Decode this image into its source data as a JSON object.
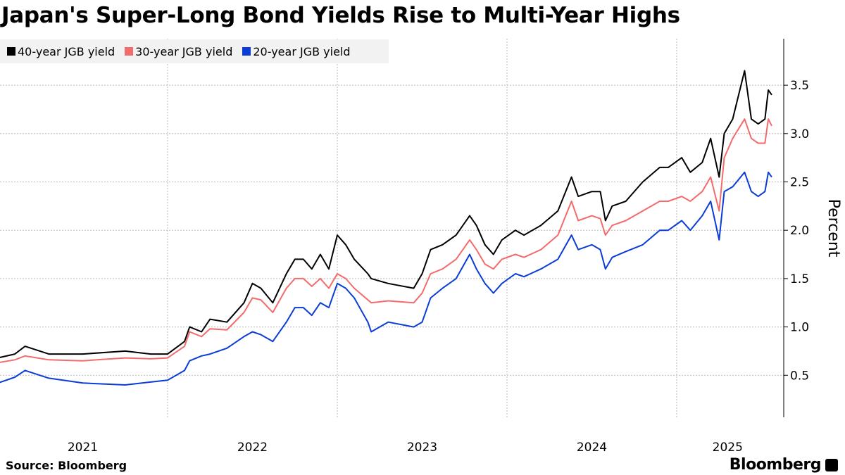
{
  "chart_data": {
    "type": "line",
    "title": "Japan's Super-Long Bond Yields Rise to Multi-Year Highs",
    "xlabel": "",
    "ylabel": "Percent",
    "ylim": [
      0.07,
      4.0
    ],
    "xlim": [
      2021.0,
      2025.62
    ],
    "x_ticks": [
      {
        "value": 2021.5,
        "label": "2021"
      },
      {
        "value": 2022.5,
        "label": "2022"
      },
      {
        "value": 2023.5,
        "label": "2023"
      },
      {
        "value": 2024.5,
        "label": "2024"
      },
      {
        "value": 2025.3,
        "label": "2025"
      }
    ],
    "x_gridlines": [
      2022.0,
      2023.0,
      2024.0,
      2025.0
    ],
    "y_ticks": [
      {
        "value": 0.5,
        "label": "0.5"
      },
      {
        "value": 1.0,
        "label": "1.0"
      },
      {
        "value": 1.5,
        "label": "1.5"
      },
      {
        "value": 2.0,
        "label": "2.0"
      },
      {
        "value": 2.5,
        "label": "2.5"
      },
      {
        "value": 3.0,
        "label": "3.0"
      },
      {
        "value": 3.5,
        "label": "3.5"
      }
    ],
    "grid": true,
    "legend_placement": "top-left",
    "x": [
      2021.0,
      2021.1,
      2021.16,
      2021.3,
      2021.5,
      2021.75,
      2021.9,
      2022.0,
      2022.1,
      2022.13,
      2022.2,
      2022.25,
      2022.35,
      2022.45,
      2022.5,
      2022.55,
      2022.62,
      2022.7,
      2022.75,
      2022.8,
      2022.85,
      2022.9,
      2022.95,
      2023.0,
      2023.05,
      2023.1,
      2023.18,
      2023.2,
      2023.3,
      2023.45,
      2023.5,
      2023.55,
      2023.62,
      2023.7,
      2023.78,
      2023.82,
      2023.87,
      2023.92,
      2023.97,
      2024.05,
      2024.1,
      2024.2,
      2024.3,
      2024.38,
      2024.42,
      2024.5,
      2024.55,
      2024.58,
      2024.62,
      2024.7,
      2024.8,
      2024.9,
      2024.95,
      2025.03,
      2025.08,
      2025.15,
      2025.2,
      2025.25,
      2025.28,
      2025.33,
      2025.4,
      2025.44,
      2025.48,
      2025.52,
      2025.54,
      2025.56
    ],
    "series": [
      {
        "name": "40-year JGB yield",
        "color": "#000000",
        "values": [
          0.68,
          0.72,
          0.8,
          0.72,
          0.72,
          0.75,
          0.72,
          0.72,
          0.85,
          1.0,
          0.95,
          1.08,
          1.05,
          1.25,
          1.45,
          1.4,
          1.25,
          1.55,
          1.7,
          1.7,
          1.6,
          1.75,
          1.6,
          1.95,
          1.85,
          1.7,
          1.55,
          1.5,
          1.45,
          1.4,
          1.55,
          1.8,
          1.85,
          1.95,
          2.15,
          2.05,
          1.85,
          1.75,
          1.9,
          2.0,
          1.95,
          2.05,
          2.2,
          2.55,
          2.35,
          2.4,
          2.4,
          2.1,
          2.25,
          2.3,
          2.5,
          2.65,
          2.65,
          2.75,
          2.6,
          2.7,
          2.95,
          2.55,
          3.0,
          3.15,
          3.65,
          3.15,
          3.1,
          3.15,
          3.45,
          3.4
        ]
      },
      {
        "name": "30-year JGB yield",
        "color": "#f36b6b",
        "values": [
          0.63,
          0.66,
          0.7,
          0.66,
          0.65,
          0.68,
          0.67,
          0.68,
          0.8,
          0.95,
          0.9,
          0.98,
          0.97,
          1.15,
          1.3,
          1.28,
          1.15,
          1.4,
          1.5,
          1.5,
          1.42,
          1.5,
          1.4,
          1.55,
          1.5,
          1.4,
          1.28,
          1.25,
          1.27,
          1.25,
          1.35,
          1.55,
          1.6,
          1.7,
          1.9,
          1.8,
          1.65,
          1.6,
          1.7,
          1.75,
          1.72,
          1.8,
          1.95,
          2.3,
          2.1,
          2.15,
          2.12,
          1.95,
          2.05,
          2.1,
          2.2,
          2.3,
          2.3,
          2.35,
          2.3,
          2.4,
          2.55,
          2.2,
          2.75,
          2.95,
          3.15,
          2.95,
          2.9,
          2.9,
          3.15,
          3.08
        ]
      },
      {
        "name": "20-year JGB yield",
        "color": "#0a3cd6",
        "values": [
          0.42,
          0.48,
          0.55,
          0.47,
          0.42,
          0.4,
          0.43,
          0.45,
          0.55,
          0.65,
          0.7,
          0.72,
          0.78,
          0.9,
          0.95,
          0.92,
          0.85,
          1.05,
          1.2,
          1.2,
          1.12,
          1.25,
          1.2,
          1.45,
          1.4,
          1.3,
          1.05,
          0.95,
          1.05,
          1.0,
          1.05,
          1.3,
          1.4,
          1.5,
          1.75,
          1.6,
          1.45,
          1.35,
          1.45,
          1.55,
          1.52,
          1.6,
          1.7,
          1.95,
          1.8,
          1.85,
          1.8,
          1.6,
          1.72,
          1.78,
          1.85,
          2.0,
          2.0,
          2.1,
          2.0,
          2.15,
          2.3,
          1.9,
          2.4,
          2.45,
          2.6,
          2.4,
          2.35,
          2.4,
          2.6,
          2.55
        ]
      }
    ]
  },
  "footer": {
    "source": "Source: Bloomberg",
    "brand": "Bloomberg"
  }
}
